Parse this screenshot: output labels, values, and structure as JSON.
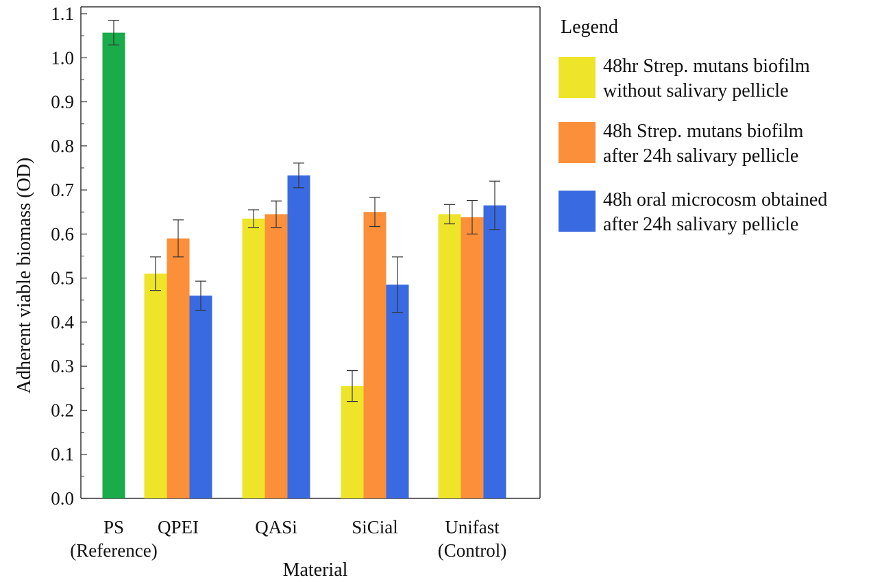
{
  "chart_data": {
    "type": "bar",
    "xlabel": "Material",
    "ylabel": "Adherent viable biomass (OD)",
    "ylim": [
      0.0,
      1.1
    ],
    "yticks": [
      "0.0",
      "0.1",
      "0.2",
      "0.3",
      "0.4",
      "0.5",
      "0.6",
      "0.7",
      "0.8",
      "0.9",
      "1.0",
      "1.1"
    ],
    "grid": false,
    "legend_position": "right",
    "legend_title": "Legend",
    "categories": [
      {
        "line1": "PS",
        "line2": "(Reference)"
      },
      {
        "line1": "QPEI",
        "line2": ""
      },
      {
        "line1": "QASi",
        "line2": ""
      },
      {
        "line1": "SiCial",
        "line2": ""
      },
      {
        "line1": "Unifast",
        "line2": "(Control)"
      }
    ],
    "reference_bar": {
      "category": "PS",
      "value": 1.057,
      "error": 0.028,
      "color": "#1aab4a"
    },
    "series": [
      {
        "name_lines": [
          "48hr Strep. mutans biofilm",
          "without salivary pellicle"
        ],
        "color": "#eee52a",
        "values": [
          null,
          0.51,
          0.635,
          0.255,
          0.645
        ],
        "errors": [
          null,
          0.038,
          0.02,
          0.035,
          0.022
        ]
      },
      {
        "name_lines": [
          "48h Strep. mutans biofilm",
          "after 24h salivary pellicle"
        ],
        "color": "#fb8f3a",
        "values": [
          null,
          0.59,
          0.645,
          0.65,
          0.638
        ],
        "errors": [
          null,
          0.042,
          0.03,
          0.033,
          0.038
        ]
      },
      {
        "name_lines": [
          "48h oral microcosm obtained",
          "after 24h salivary pellicle"
        ],
        "color": "#3a6ae1",
        "values": [
          null,
          0.46,
          0.733,
          0.485,
          0.665
        ],
        "errors": [
          null,
          0.033,
          0.028,
          0.063,
          0.055
        ]
      }
    ]
  }
}
